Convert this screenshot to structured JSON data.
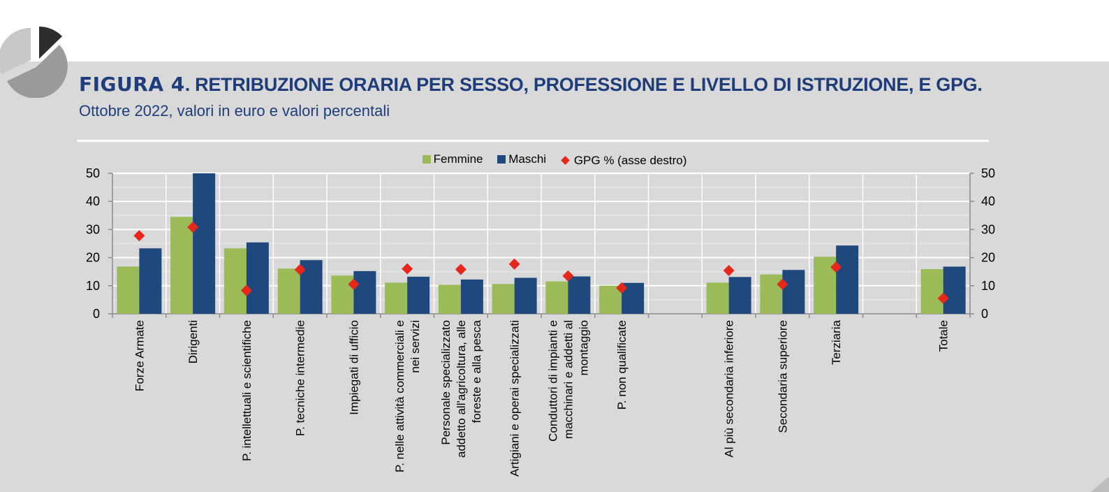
{
  "header": {
    "figure_label": "FIGURA 4",
    "title_rest": ". RETRIBUZIONE ORARIA PER SESSO, PROFESSIONE E LIVELLO DI ISTRUZIONE, E GPG.",
    "subtitle": "Ottobre 2022, valori in euro e valori percentali"
  },
  "colors": {
    "title": "#1f3d7a",
    "femmine": "#9bbb59",
    "maschi": "#1f497d",
    "gpg": "#e8271c",
    "panel": "#d9d9d9"
  },
  "logo_icon": "pie-chart-logo-icon",
  "chart_data": {
    "type": "bar",
    "categories": [
      "Forze Armate",
      "Dirigenti",
      "P. intellettuali e scientifiche",
      "P. tecniche intermedie",
      "Impiegati di ufficio",
      "P. nelle attività commerciali e nei servizi",
      "Personale specializzato addetto all'agricoltura, alle foreste e alla pesca",
      "Artigiani e operai specializzati",
      "Conduttori di impianti e macchinari e addetti al montaggio",
      "P. non qualificate",
      "",
      "Al più secondaria inferiore",
      "Secondaria superiore",
      "Terziaria",
      "",
      "Totale"
    ],
    "category_lines": [
      [
        "Forze Armate"
      ],
      [
        "Dirigenti"
      ],
      [
        "P. intellettuali e scientifiche"
      ],
      [
        "P. tecniche intermedie"
      ],
      [
        "Impiegati di ufficio"
      ],
      [
        "P. nelle attività commerciali e",
        "nei servizi"
      ],
      [
        "Personale specializzato",
        "addetto all'agricoltura, alle",
        "foreste e alla pesca"
      ],
      [
        "Artigiani e operai specializzati"
      ],
      [
        "Conduttori di impianti e",
        "macchinari e addetti al",
        "montaggio"
      ],
      [
        "P. non qualificate"
      ],
      [],
      [
        "Al più secondaria inferiore"
      ],
      [
        "Secondaria superiore"
      ],
      [
        "Terziaria"
      ],
      [],
      [
        "Totale"
      ]
    ],
    "series": [
      {
        "name": "Femmine",
        "type": "bar",
        "axis": "left",
        "values": [
          16.8,
          34.5,
          23.3,
          16.1,
          13.6,
          11.1,
          10.3,
          10.6,
          11.5,
          10.0,
          null,
          11.1,
          14.0,
          20.3,
          null,
          15.9
        ]
      },
      {
        "name": "Maschi",
        "type": "bar",
        "axis": "left",
        "values": [
          23.3,
          50,
          25.4,
          19.1,
          15.2,
          13.2,
          12.2,
          12.8,
          13.3,
          11.0,
          null,
          13.1,
          15.6,
          24.3,
          null,
          16.8
        ]
      },
      {
        "name": "GPG % (asse destro)",
        "type": "scatter",
        "marker": "diamond",
        "axis": "right",
        "values": [
          27.8,
          30.8,
          8.3,
          15.7,
          10.5,
          16.0,
          15.8,
          17.7,
          13.5,
          9.2,
          null,
          15.4,
          10.5,
          16.6,
          null,
          5.5
        ]
      }
    ],
    "ylim": [
      0,
      50
    ],
    "y2lim": [
      0,
      50
    ],
    "yticks": [
      "0",
      "10",
      "20",
      "30",
      "40",
      "50"
    ],
    "y2ticks": [
      "0",
      "10",
      "20",
      "30",
      "40",
      "50"
    ],
    "grid": true,
    "legend": "top-center",
    "xlabel": "",
    "ylabel": ""
  }
}
